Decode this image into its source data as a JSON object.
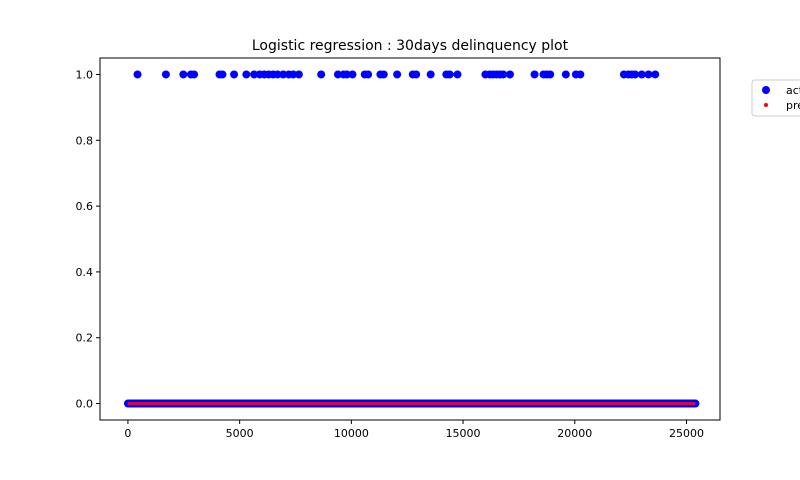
{
  "chart_data": {
    "type": "scatter",
    "title": "Logistic regression : 30days delinquency plot",
    "xlabel": "",
    "ylabel": "",
    "xlim": [
      -1250,
      26500
    ],
    "ylim": [
      -0.05,
      1.05
    ],
    "xticks": [
      0,
      5000,
      10000,
      15000,
      20000,
      25000
    ],
    "yticks": [
      0.0,
      0.2,
      0.4,
      0.6,
      0.8,
      1.0
    ],
    "xtick_labels": [
      "0",
      "5000",
      "10000",
      "15000",
      "20000",
      "25000"
    ],
    "ytick_labels": [
      "0.0",
      "0.2",
      "0.4",
      "0.6",
      "0.8",
      "1.0"
    ],
    "grid": false,
    "legend_position": "outside-right",
    "series": [
      {
        "name": "act",
        "color": "#0000ff",
        "marker": "large-circle",
        "description_of_zero_band": "dense points at y=0 spanning x 0 to 25400",
        "zero_range": [
          0,
          25400
        ],
        "ones_x": [
          430,
          1700,
          2480,
          2820,
          2960,
          4100,
          4230,
          4750,
          5300,
          5650,
          5900,
          6100,
          6300,
          6500,
          6700,
          6950,
          7200,
          7400,
          7650,
          8650,
          9400,
          9650,
          9800,
          10050,
          10600,
          10750,
          11300,
          11450,
          12050,
          12750,
          12900,
          13550,
          14250,
          14400,
          14750,
          16000,
          16200,
          16350,
          16500,
          16650,
          16800,
          17100,
          18200,
          18600,
          18750,
          18900,
          19600,
          20050,
          20250,
          22200,
          22400,
          22550,
          22700,
          23000,
          23300,
          23600
        ]
      },
      {
        "name": "pre",
        "color": "#ff0000",
        "marker": "small-dot",
        "description_of_zero_band": "predictions all at y=0 spanning x 0 to 25400",
        "zero_range": [
          0,
          25400
        ]
      }
    ]
  }
}
